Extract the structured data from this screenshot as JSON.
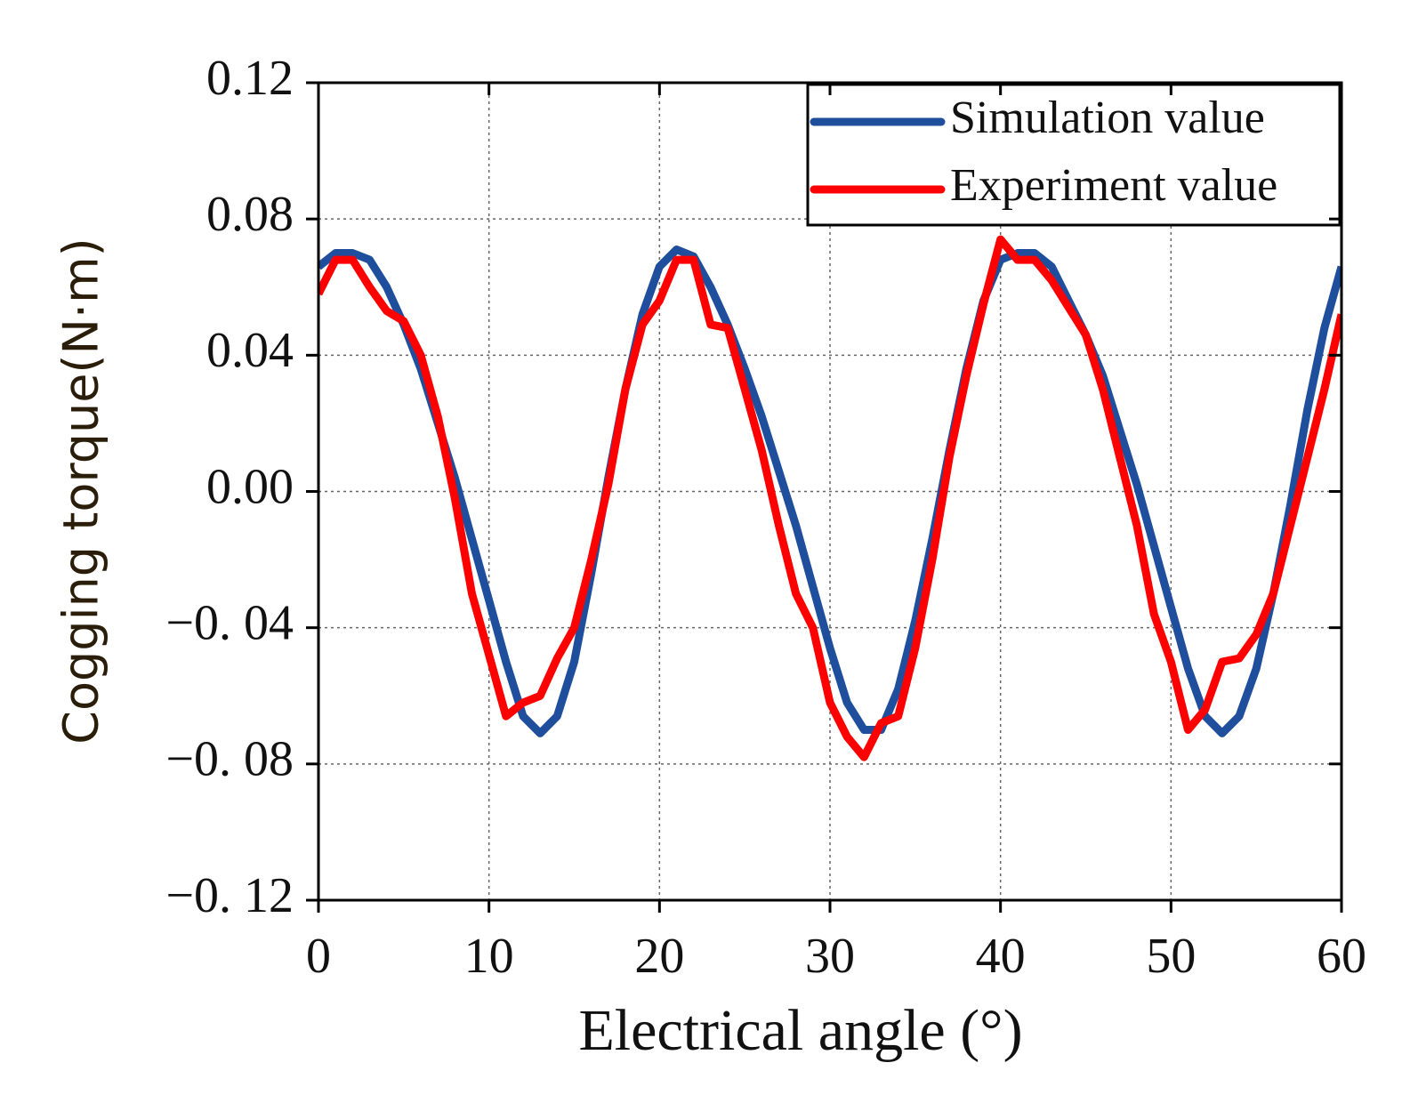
{
  "chart_data": {
    "type": "line",
    "x_label": "Electrical angle (°)",
    "y_label": "Cogging torque(N·m)",
    "x": [
      0,
      1,
      2,
      3,
      4,
      5,
      6,
      7,
      8,
      9,
      10,
      11,
      12,
      13,
      14,
      15,
      16,
      17,
      18,
      19,
      20,
      21,
      22,
      23,
      24,
      25,
      26,
      27,
      28,
      29,
      30,
      31,
      32,
      33,
      34,
      35,
      36,
      37,
      38,
      39,
      40,
      41,
      42,
      43,
      44,
      45,
      46,
      47,
      48,
      49,
      50,
      51,
      52,
      53,
      54,
      55,
      56,
      57,
      58,
      59,
      60
    ],
    "series": [
      {
        "name": "Simulation value",
        "color": "#1f4e9c",
        "values": [
          0.066,
          0.07,
          0.07,
          0.068,
          0.06,
          0.049,
          0.036,
          0.02,
          0.004,
          -0.014,
          -0.032,
          -0.05,
          -0.066,
          -0.071,
          -0.066,
          -0.05,
          -0.024,
          0.004,
          0.03,
          0.052,
          0.066,
          0.071,
          0.069,
          0.06,
          0.049,
          0.036,
          0.022,
          0.006,
          -0.01,
          -0.028,
          -0.046,
          -0.062,
          -0.07,
          -0.07,
          -0.058,
          -0.038,
          -0.014,
          0.012,
          0.036,
          0.056,
          0.068,
          0.07,
          0.07,
          0.066,
          0.056,
          0.046,
          0.034,
          0.018,
          0.002,
          -0.016,
          -0.034,
          -0.052,
          -0.066,
          -0.071,
          -0.066,
          -0.052,
          -0.03,
          -0.004,
          0.024,
          0.048,
          0.066
        ]
      },
      {
        "name": "Experiment value",
        "color": "#ff0000",
        "values": [
          0.058,
          0.068,
          0.068,
          0.06,
          0.053,
          0.05,
          0.04,
          0.022,
          -0.002,
          -0.03,
          -0.048,
          -0.066,
          -0.062,
          -0.06,
          -0.049,
          -0.04,
          -0.02,
          0.002,
          0.03,
          0.049,
          0.056,
          0.068,
          0.068,
          0.049,
          0.048,
          0.03,
          0.012,
          -0.01,
          -0.03,
          -0.04,
          -0.062,
          -0.072,
          -0.078,
          -0.068,
          -0.066,
          -0.046,
          -0.02,
          0.01,
          0.034,
          0.055,
          0.074,
          0.068,
          0.068,
          0.062,
          0.054,
          0.046,
          0.03,
          0.01,
          -0.01,
          -0.036,
          -0.05,
          -0.07,
          -0.064,
          -0.05,
          -0.049,
          -0.042,
          -0.03,
          -0.01,
          0.01,
          0.03,
          0.052
        ]
      }
    ],
    "xlim": [
      0,
      60
    ],
    "xticks": [
      0,
      10,
      20,
      30,
      40,
      50,
      60
    ],
    "ylim": [
      -0.12,
      0.12
    ],
    "yticks": [
      {
        "value": -0.12,
        "label": "−0. 12"
      },
      {
        "value": -0.08,
        "label": "−0. 08"
      },
      {
        "value": -0.04,
        "label": "−0. 04"
      },
      {
        "value": 0,
        "label": "0.00"
      },
      0.04,
      0.08,
      0.12
    ],
    "grid": true,
    "legend": "upper right"
  }
}
